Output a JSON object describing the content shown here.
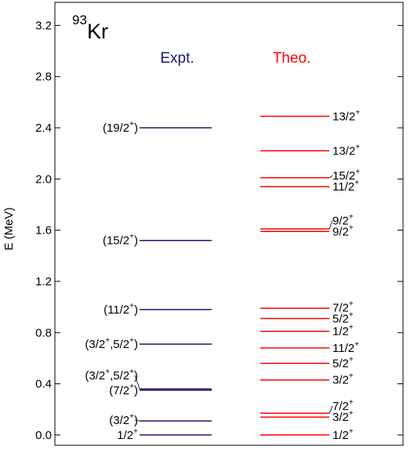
{
  "chart_data": {
    "type": "level-scheme",
    "nucleus": {
      "mass": "93",
      "symbol": "Kr"
    },
    "ylabel": "E (MeV)",
    "ylim": [
      -0.08,
      3.38
    ],
    "yticks": [
      0.0,
      0.4,
      0.8,
      1.2,
      1.6,
      2.0,
      2.4,
      2.8,
      3.2
    ],
    "ytick_labels": [
      "0.0",
      "0.4",
      "0.8",
      "1.2",
      "1.6",
      "2.0",
      "2.4",
      "2.8",
      "3.2"
    ],
    "series": [
      {
        "name": "Expt.",
        "color": "#1a1a6e",
        "levels": [
          {
            "energy": 0.0,
            "label": "1/2+"
          },
          {
            "energy": 0.11,
            "label": "(3/2+)"
          },
          {
            "energy": 0.35,
            "label": "(7/2+)"
          },
          {
            "energy": 0.36,
            "label": "(3/2+,5/2+)"
          },
          {
            "energy": 0.71,
            "label": "(3/2+,5/2+)"
          },
          {
            "energy": 0.98,
            "label": "(11/2+)"
          },
          {
            "energy": 1.52,
            "label": "(15/2+)"
          },
          {
            "energy": 2.4,
            "label": "(19/2+)"
          }
        ]
      },
      {
        "name": "Theo.",
        "color": "#ff0000",
        "levels": [
          {
            "energy": 0.0,
            "label": "1/2+"
          },
          {
            "energy": 0.14,
            "label": "3/2+"
          },
          {
            "energy": 0.17,
            "label": "7/2+"
          },
          {
            "energy": 0.43,
            "label": "3/2+"
          },
          {
            "energy": 0.56,
            "label": "5/2+"
          },
          {
            "energy": 0.68,
            "label": "11/2+"
          },
          {
            "energy": 0.81,
            "label": "1/2+"
          },
          {
            "energy": 0.91,
            "label": "5/2+"
          },
          {
            "energy": 0.99,
            "label": "7/2+"
          },
          {
            "energy": 1.59,
            "label": "9/2+"
          },
          {
            "energy": 1.61,
            "label": "9/2+"
          },
          {
            "energy": 1.94,
            "label": "11/2+"
          },
          {
            "energy": 2.01,
            "label": "15/2+"
          },
          {
            "energy": 2.22,
            "label": "13/2+"
          },
          {
            "energy": 2.49,
            "label": "13/2+"
          }
        ]
      }
    ]
  }
}
